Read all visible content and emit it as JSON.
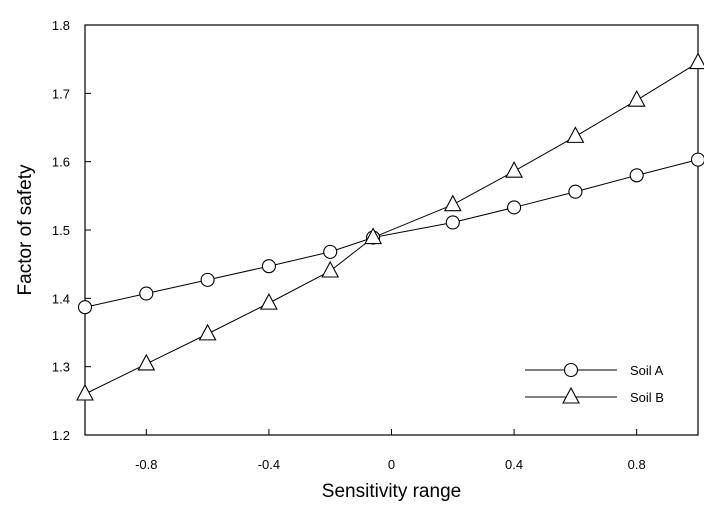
{
  "chart_data": {
    "type": "line",
    "xlabel": "Sensitivity range",
    "ylabel": "Factor of safety",
    "xlim": [
      -1.0,
      1.0
    ],
    "ylim": [
      1.2,
      1.8
    ],
    "xticks": [
      -0.8,
      -0.4,
      0,
      0.4,
      0.8
    ],
    "xtick_labels": [
      "-0.8",
      "-0.4",
      "0",
      "0.4",
      "0.8"
    ],
    "yticks": [
      1.2,
      1.3,
      1.4,
      1.5,
      1.6,
      1.7,
      1.8
    ],
    "ytick_labels": [
      "1.2",
      "1.3",
      "1.4",
      "1.5",
      "1.6",
      "1.7",
      "1.8"
    ],
    "grid": false,
    "legend_position": "bottom-right",
    "series": [
      {
        "name": "Soil A",
        "marker": "circle",
        "color": "#000000",
        "x": [
          -1.0,
          -0.8,
          -0.6,
          -0.4,
          -0.2,
          -0.06,
          0.2,
          0.4,
          0.6,
          0.8,
          1.0
        ],
        "y": [
          1.387,
          1.407,
          1.427,
          1.447,
          1.468,
          1.489,
          1.511,
          1.533,
          1.556,
          1.58,
          1.603
        ]
      },
      {
        "name": "Soil B",
        "marker": "triangle",
        "color": "#000000",
        "x": [
          -1.0,
          -0.8,
          -0.6,
          -0.4,
          -0.2,
          -0.06,
          0.2,
          0.4,
          0.6,
          0.8,
          1.0
        ],
        "y": [
          1.26,
          1.304,
          1.348,
          1.393,
          1.44,
          1.489,
          1.537,
          1.586,
          1.637,
          1.69,
          1.745
        ]
      }
    ]
  }
}
